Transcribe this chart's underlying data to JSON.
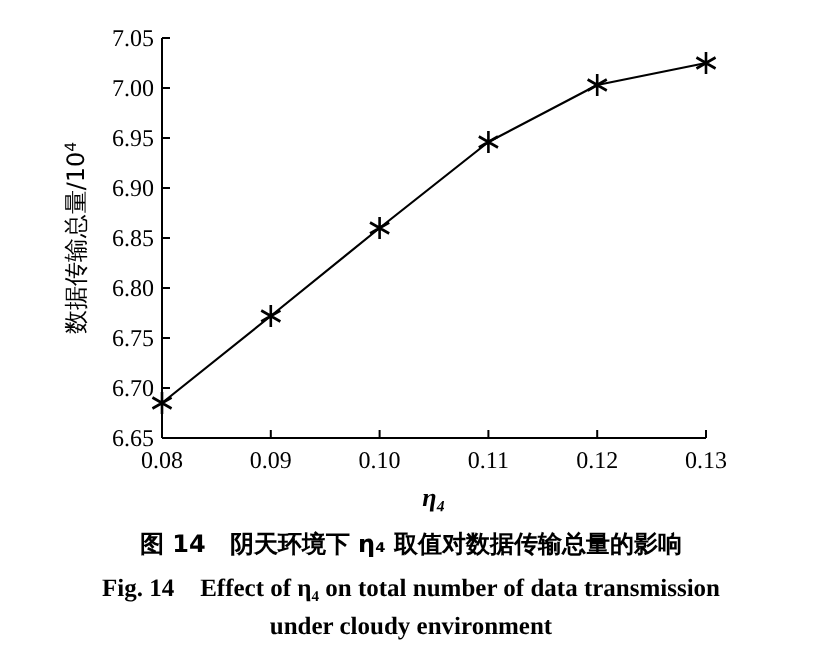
{
  "chart_data": {
    "type": "line",
    "title": "图 14　阴天环境下 η₄ 取值对数据传输总量的影响",
    "subtitle": "Fig. 14　Effect of η₄ on total number of data transmission under cloudy environment",
    "xlabel": "η₄",
    "ylabel": "数据传输总量/10$^{4}$",
    "x": [
      0.08,
      0.09,
      0.1,
      0.11,
      0.12,
      0.13
    ],
    "series": [
      {
        "color": "#000000",
        "values": [
          6.685,
          6.772,
          6.86,
          6.946,
          7.003,
          7.025
        ]
      }
    ],
    "xlim": [
      0.08,
      0.13
    ],
    "xticks": [
      {
        "value": 0.08,
        "label": "0.08"
      },
      {
        "value": 0.09,
        "label": "0.09"
      },
      {
        "value": 0.1,
        "label": "0.10"
      },
      {
        "value": 0.11,
        "label": "0.11"
      },
      {
        "value": 0.12,
        "label": "0.12"
      },
      {
        "value": 0.13,
        "label": "0.13"
      }
    ],
    "ylim": [
      6.65,
      7.05
    ],
    "yticks": [
      {
        "value": 6.65,
        "label": "6.65"
      },
      {
        "value": 6.7,
        "label": "6.70"
      },
      {
        "value": 6.75,
        "label": "6.75"
      },
      {
        "value": 6.8,
        "label": "6.80"
      },
      {
        "value": 6.85,
        "label": "6.85"
      },
      {
        "value": 6.9,
        "label": "6.90"
      },
      {
        "value": 6.95,
        "label": "6.95"
      },
      {
        "value": 7.0,
        "label": "7.00"
      },
      {
        "value": 7.05,
        "label": "7.05"
      }
    ],
    "marker": "cross",
    "line_style": "solid",
    "grid": false
  }
}
